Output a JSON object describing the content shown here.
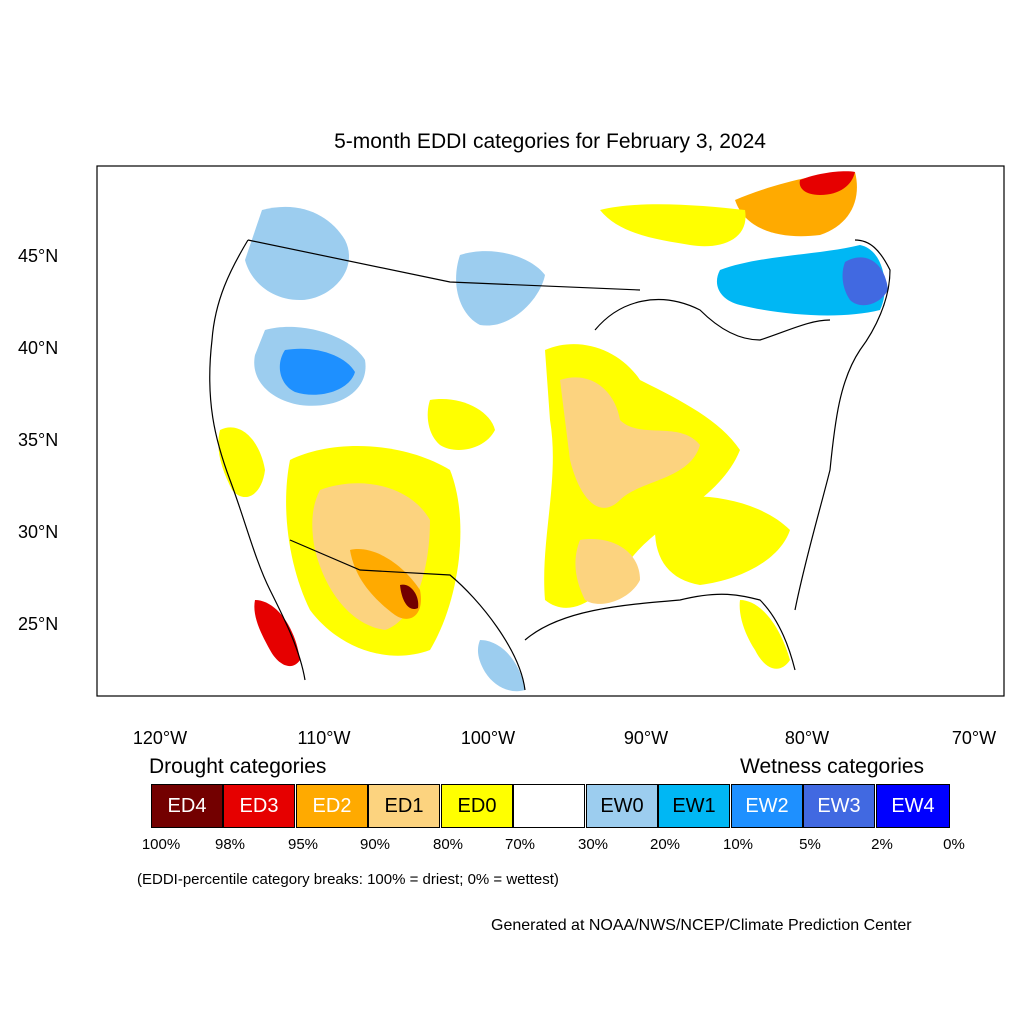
{
  "title": "5-month EDDI categories for February 3, 2024",
  "lat_labels": [
    "45°N",
    "40°N",
    "35°N",
    "30°N",
    "25°N"
  ],
  "lon_labels": [
    "120°W",
    "110°W",
    "100°W",
    "90°W",
    "80°W",
    "70°W"
  ],
  "legend": {
    "drought_title": "Drought categories",
    "wetness_title": "Wetness categories",
    "categories": [
      {
        "label": "ED4",
        "color": "#730000"
      },
      {
        "label": "ED3",
        "color": "#e60000"
      },
      {
        "label": "ED2",
        "color": "#ffaa00"
      },
      {
        "label": "ED1",
        "color": "#fcd37f"
      },
      {
        "label": "ED0",
        "color": "#ffff00"
      },
      {
        "label": "",
        "color": "#ffffff"
      },
      {
        "label": "EW0",
        "color": "#9ccdef"
      },
      {
        "label": "EW1",
        "color": "#00b7f4"
      },
      {
        "label": "EW2",
        "color": "#1e90ff"
      },
      {
        "label": "EW3",
        "color": "#4169e1"
      },
      {
        "label": "EW4",
        "color": "#0000ff"
      }
    ],
    "percent_breaks": [
      "100%",
      "98%",
      "95%",
      "90%",
      "80%",
      "70%",
      "30%",
      "20%",
      "10%",
      "5%",
      "2%",
      "0%"
    ]
  },
  "note": "(EDDI-percentile category breaks: 100% = driest; 0% = wettest)",
  "credit": "Generated at NOAA/NWS/NCEP/Climate Prediction Center"
}
